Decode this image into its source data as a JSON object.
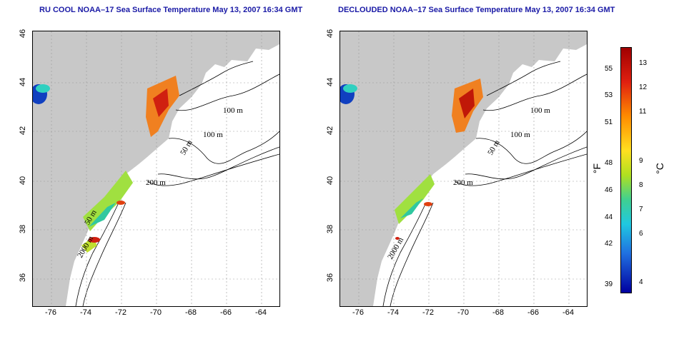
{
  "left_panel": {
    "title": "RU COOL NOAA–17 Sea Surface Temperature May 13, 2007 16:34 GMT",
    "contour_labels": [
      "100 m",
      "100 m",
      "50 m",
      "200 m",
      "50 m",
      "2000 m"
    ]
  },
  "right_panel": {
    "title": "DECLOUDED NOAA–17 Sea Surface Temperature May 13, 2007 16:34 GMT",
    "contour_labels": [
      "100 m",
      "100 m",
      "50 m",
      "200 m",
      "2000 m"
    ]
  },
  "axes": {
    "lat_ticks": [
      "46",
      "44",
      "42",
      "40",
      "38",
      "36"
    ],
    "lon_ticks": [
      "-76",
      "-74",
      "-72",
      "-70",
      "-68",
      "-66",
      "-64"
    ]
  },
  "colorbar": {
    "fahrenheit_unit": "°F",
    "celsius_unit": "°C",
    "fahrenheit_ticks": [
      "55",
      "53",
      "51",
      "48",
      "46",
      "44",
      "42",
      "39"
    ],
    "celsius_ticks": [
      "13",
      "12",
      "11",
      "9",
      "8",
      "7",
      "6",
      "4"
    ]
  },
  "colors": {
    "land": "#c8c8c8",
    "title": "#1a1aa6",
    "ocean": "#ffffff"
  }
}
